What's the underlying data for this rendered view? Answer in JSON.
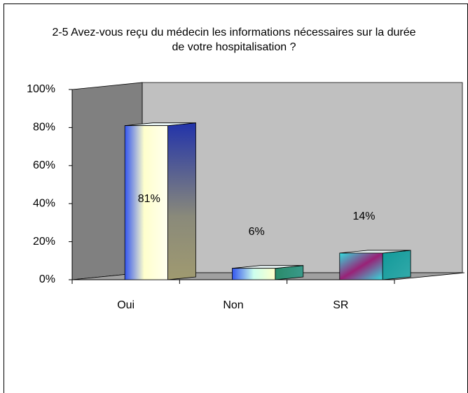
{
  "chart_data": {
    "type": "bar3d",
    "title": "2-5 Avez-vous reçu du médecin les informations nécessaires sur la durée de votre hospitalisation ?",
    "categories": [
      "Oui",
      "Non",
      "SR"
    ],
    "values": [
      81,
      6,
      14
    ],
    "value_labels": [
      "81%",
      "6%",
      "14%"
    ],
    "ylim": [
      0,
      100
    ],
    "yticks": [
      {
        "value": 0,
        "label": "0%"
      },
      {
        "value": 20,
        "label": "20%"
      },
      {
        "value": 40,
        "label": "40%"
      },
      {
        "value": 60,
        "label": "60%"
      },
      {
        "value": 80,
        "label": "80%"
      },
      {
        "value": 100,
        "label": "100%"
      }
    ]
  }
}
